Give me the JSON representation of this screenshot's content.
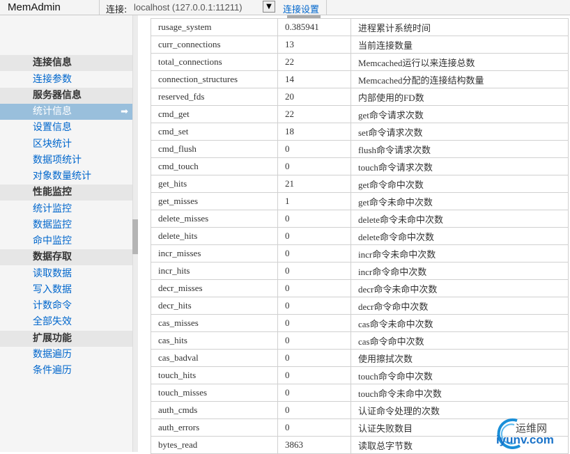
{
  "header": {
    "app_title": "MemAdmin",
    "connection_label": "连接:",
    "connection_value": "localhost (127.0.0.1:11211)",
    "dropdown_glyph": "▼",
    "connection_settings": "连接设置"
  },
  "sidebar": {
    "sections": [
      {
        "title": "连接信息",
        "items": [
          "连接参数"
        ]
      },
      {
        "title": "服务器信息",
        "items": [
          "统计信息",
          "设置信息",
          "区块统计",
          "数据项统计",
          "对象数量统计"
        ]
      },
      {
        "title": "性能监控",
        "items": [
          "统计监控",
          "数据监控",
          "命中监控"
        ]
      },
      {
        "title": "数据存取",
        "items": [
          "读取数据",
          "写入数据",
          "计数命令",
          "全部失效"
        ]
      },
      {
        "title": "扩展功能",
        "items": [
          "数据遍历",
          "条件遍历"
        ]
      }
    ],
    "active_item": "统计信息",
    "active_arrow": "➡"
  },
  "stats": [
    [
      "rusage_system",
      "0.385941",
      "进程累计系统时间"
    ],
    [
      "curr_connections",
      "13",
      "当前连接数量"
    ],
    [
      "total_connections",
      "22",
      "Memcached运行以来连接总数"
    ],
    [
      "connection_structures",
      "14",
      "Memcached分配的连接结构数量"
    ],
    [
      "reserved_fds",
      "20",
      "内部使用的FD数"
    ],
    [
      "cmd_get",
      "22",
      "get命令请求次数"
    ],
    [
      "cmd_set",
      "18",
      "set命令请求次数"
    ],
    [
      "cmd_flush",
      "0",
      "flush命令请求次数"
    ],
    [
      "cmd_touch",
      "0",
      "touch命令请求次数"
    ],
    [
      "get_hits",
      "21",
      "get命令命中次数"
    ],
    [
      "get_misses",
      "1",
      "get命令未命中次数"
    ],
    [
      "delete_misses",
      "0",
      "delete命令未命中次数"
    ],
    [
      "delete_hits",
      "0",
      "delete命令命中次数"
    ],
    [
      "incr_misses",
      "0",
      "incr命令未命中次数"
    ],
    [
      "incr_hits",
      "0",
      "incr命令命中次数"
    ],
    [
      "decr_misses",
      "0",
      "decr命令未命中次数"
    ],
    [
      "decr_hits",
      "0",
      "decr命令命中次数"
    ],
    [
      "cas_misses",
      "0",
      "cas命令未命中次数"
    ],
    [
      "cas_hits",
      "0",
      "cas命令命中次数"
    ],
    [
      "cas_badval",
      "0",
      "使用擦拭次数"
    ],
    [
      "touch_hits",
      "0",
      "touch命令命中次数"
    ],
    [
      "touch_misses",
      "0",
      "touch命令未命中次数"
    ],
    [
      "auth_cmds",
      "0",
      "认证命令处理的次数"
    ],
    [
      "auth_errors",
      "0",
      "认证失败数目"
    ],
    [
      "bytes_read",
      "3863",
      "读取总字节数"
    ]
  ],
  "watermark": {
    "cn": "运维网",
    "en": "iyunv.com"
  }
}
